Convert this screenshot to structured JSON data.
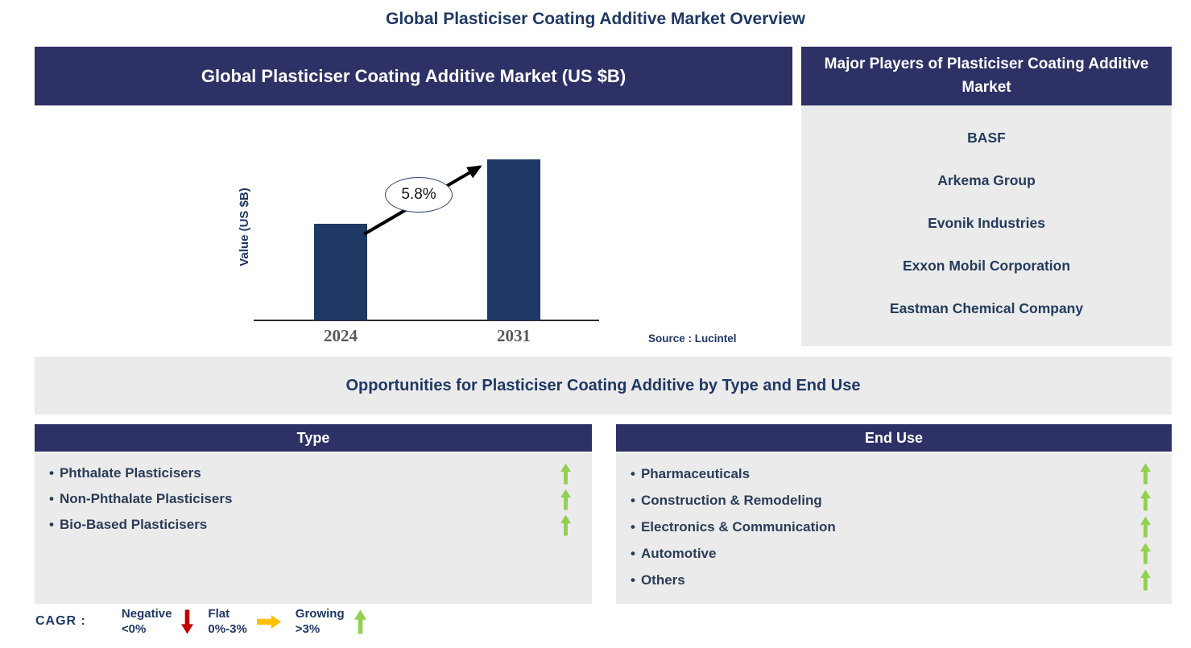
{
  "page_title": "Global Plasticiser Coating Additive Market Overview",
  "chart_panel": {
    "header": "Global Plasticiser Coating Additive Market (US $B)",
    "y_axis_label": "Value (US $B)",
    "source": "Source : Lucintel"
  },
  "chart_data": {
    "type": "bar",
    "title": "Global Plasticiser Coating Additive Market (US $B)",
    "categories": [
      "2024",
      "2031"
    ],
    "values": [
      0.6,
      1.0
    ],
    "ylabel": "Value (US $B)",
    "xlabel": "",
    "cagr": "5.8%",
    "annotation": "arrow from 2024 bar top to 2031 bar top labeled 5.8%",
    "bar_color": "#1F3864",
    "grid": false,
    "legend_position": "none",
    "source": "Source : Lucintel"
  },
  "major_players": {
    "header": "Major Players of Plasticiser Coating Additive Market",
    "companies": [
      "BASF",
      "Arkema Group",
      "Evonik Industries",
      "Exxon Mobil Corporation",
      "Eastman Chemical Company"
    ]
  },
  "opportunities": {
    "banner": "Opportunities for Plasticiser Coating Additive by Type and End Use",
    "bullet": "•",
    "type_panel": {
      "header": "Type",
      "items": [
        {
          "label": "Phthalate Plasticisers",
          "trend": "growing"
        },
        {
          "label": "Non-Phthalate Plasticisers",
          "trend": "growing"
        },
        {
          "label": "Bio-Based Plasticisers",
          "trend": "growing"
        }
      ]
    },
    "end_use_panel": {
      "header": "End Use",
      "items": [
        {
          "label": "Pharmaceuticals",
          "trend": "growing"
        },
        {
          "label": "Construction & Remodeling",
          "trend": "growing"
        },
        {
          "label": "Electronics & Communication",
          "trend": "growing"
        },
        {
          "label": "Automotive",
          "trend": "growing"
        },
        {
          "label": "Others",
          "trend": "growing"
        }
      ]
    }
  },
  "cagr_legend": {
    "label": "CAGR :",
    "entries": [
      {
        "name": "Negative",
        "range": "<0%",
        "icon": "down-arrow",
        "color": "#C00000"
      },
      {
        "name": "Flat",
        "range": "0%-3%",
        "icon": "right-arrow",
        "color": "#FFC000"
      },
      {
        "name": "Growing",
        "range": ">3%",
        "icon": "up-arrow",
        "color": "#92D050"
      }
    ]
  },
  "colors": {
    "header_navy": "#2D3166",
    "bar_navy": "#1F3864",
    "panel_grey": "#EBEBEB",
    "title_text": "#1F3864",
    "item_text": "#2A3C58",
    "growing_green": "#92D050"
  }
}
